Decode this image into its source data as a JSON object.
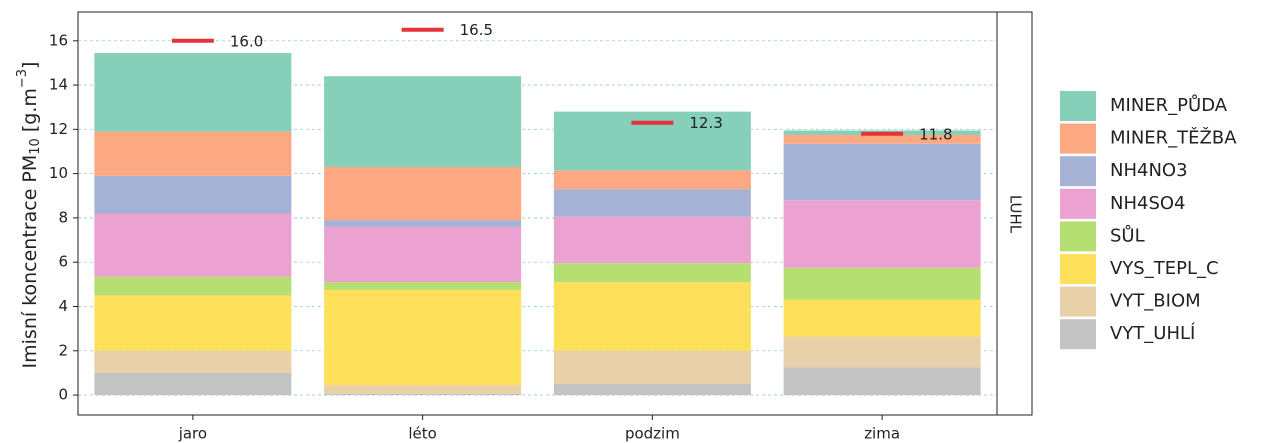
{
  "chart_data": {
    "type": "stacked_bar",
    "ylabel": [
      "Imisní koncentrace  PM",
      "10",
      "  [g.m",
      "−3",
      "]"
    ],
    "facet": "LUHL",
    "categories": [
      "jaro",
      "léto",
      "podzim",
      "zima"
    ],
    "series": [
      {
        "name": "MINER_PŮDA",
        "color": "#86cfb8",
        "values": [
          3.55,
          4.1,
          2.65,
          0.2
        ]
      },
      {
        "name": "MINER_TĚŽBA",
        "color": "#fca882",
        "values": [
          2.0,
          2.4,
          0.85,
          0.4
        ]
      },
      {
        "name": "NH4NO3",
        "color": "#a5b2d6",
        "values": [
          1.7,
          0.3,
          1.25,
          2.55
        ]
      },
      {
        "name": "NH4SO4",
        "color": "#eca2d0",
        "values": [
          2.85,
          2.5,
          2.1,
          3.05
        ]
      },
      {
        "name": "SŮL",
        "color": "#b6df72",
        "values": [
          0.85,
          0.35,
          0.85,
          1.45
        ]
      },
      {
        "name": "VYS_TEPL_C",
        "color": "#fee05a",
        "values": [
          2.5,
          4.3,
          3.1,
          1.65
        ]
      },
      {
        "name": "VYT_BIOM",
        "color": "#e8d0a8",
        "values": [
          1.0,
          0.4,
          1.5,
          1.4
        ]
      },
      {
        "name": "VYT_UHLÍ",
        "color": "#c3c3c3",
        "values": [
          1.0,
          0.05,
          0.5,
          1.25
        ]
      }
    ],
    "reference": {
      "values": [
        16,
        16.5,
        12.3,
        11.8
      ],
      "value_labels": [
        "16.0",
        "16.5",
        "12.3",
        "11.8"
      ],
      "color": "#e3343a"
    },
    "ylim": [
      -0.9,
      17.3
    ],
    "yticks": [
      0,
      2,
      4,
      6,
      8,
      10,
      12,
      14,
      16
    ],
    "grid": true
  }
}
